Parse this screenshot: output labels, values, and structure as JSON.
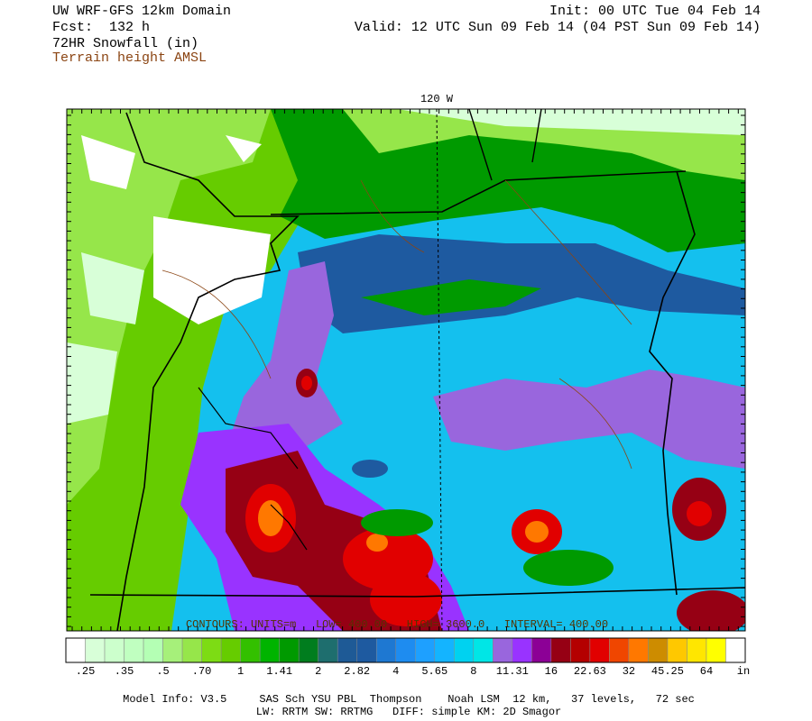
{
  "header": {
    "title": "UW WRF-GFS 12km Domain",
    "forecast": "Fcst:  132 h",
    "field": "72HR Snowfall (in)",
    "contour_field": "Terrain height AMSL",
    "init": "Init: 00 UTC Tue 04 Feb 14",
    "valid": "Valid: 12 UTC Sun 09 Feb 14 (04 PST Sun 09 Feb 14)"
  },
  "map": {
    "meridian_label": "120 W",
    "contour_info": "CONTOURS: UNITS=m   LOW= 400.00   HIGH= 3600.0   INTERVAL= 400.00"
  },
  "legend": {
    "colors": [
      "#ffffff",
      "#d8ffd8",
      "#ccffcc",
      "#c0ffc0",
      "#b4ffb4",
      "#a6f07a",
      "#96e64a",
      "#7ddc14",
      "#66cc00",
      "#33c000",
      "#00b400",
      "#009a00",
      "#007d1e",
      "#1e6e6e",
      "#1e5a96",
      "#1e5aa0",
      "#1e78d2",
      "#1e8cf0",
      "#1ea0ff",
      "#14b4ff",
      "#00d2f0",
      "#00e6e6",
      "#9966dd",
      "#9933ff",
      "#8c0096",
      "#960014",
      "#b40000",
      "#e10000",
      "#f04600",
      "#ff7800",
      "#cd8c00",
      "#ffc800",
      "#ffe600",
      "#ffff00",
      "#ffffff"
    ],
    "labels": [
      ".25",
      ".35",
      ".5",
      ".70",
      "1",
      "1.41",
      "2",
      "2.82",
      "4",
      "5.65",
      "8",
      "11.31",
      "16",
      "22.63",
      "32",
      "45.25",
      "64"
    ],
    "unit": "in"
  },
  "footer": {
    "line1": "Model Info: V3.5     SAS Sch YSU PBL  Thompson    Noah LSM  12 km,   37 levels,   72 sec",
    "line2": "LW: RRTM SW: RRTMG   DIFF: simple KM: 2D Smagor"
  }
}
